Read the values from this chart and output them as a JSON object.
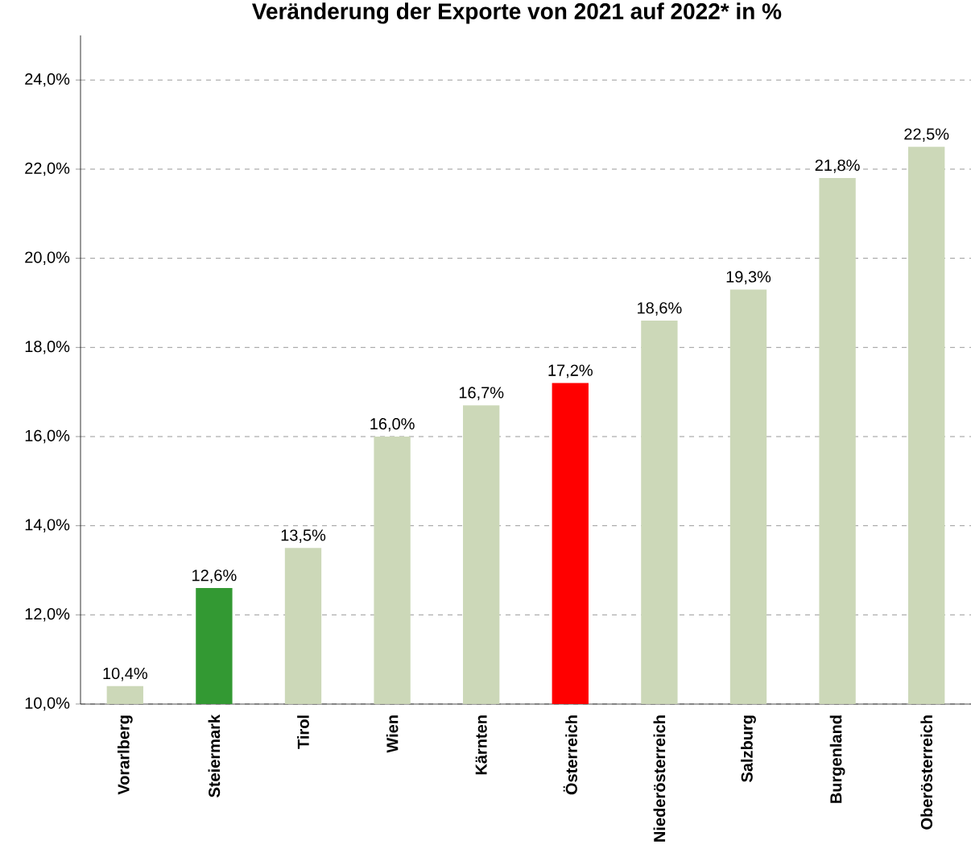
{
  "chart_data": {
    "type": "bar",
    "title": "Veränderung der Exporte von 2021 auf 2022* in %",
    "categories": [
      "Vorarlberg",
      "Steiermark",
      "Tirol",
      "Wien",
      "Kärnten",
      "Österreich",
      "Niederösterreich",
      "Salzburg",
      "Burgenland",
      "Oberösterreich"
    ],
    "values": [
      10.4,
      12.6,
      13.5,
      16.0,
      16.7,
      17.2,
      18.6,
      19.3,
      21.8,
      22.5
    ],
    "colors": [
      "#ccd8b8",
      "#339933",
      "#ccd8b8",
      "#ccd8b8",
      "#ccd8b8",
      "#ff0000",
      "#ccd8b8",
      "#ccd8b8",
      "#ccd8b8",
      "#ccd8b8"
    ],
    "value_labels": [
      "10,4%",
      "12,6%",
      "13,5%",
      "16,0%",
      "16,7%",
      "17,2%",
      "18,6%",
      "19,3%",
      "21,8%",
      "22,5%"
    ],
    "ylim": [
      10,
      25
    ],
    "yticks": [
      {
        "value": 10,
        "label": "10,0%"
      },
      {
        "value": 12,
        "label": "12,0%"
      },
      {
        "value": 14,
        "label": "14,0%"
      },
      {
        "value": 16,
        "label": "16,0%"
      },
      {
        "value": 18,
        "label": "18,0%"
      },
      {
        "value": 20,
        "label": "20,0%"
      },
      {
        "value": 22,
        "label": "22,0%"
      },
      {
        "value": 24,
        "label": "24,0%"
      }
    ],
    "grid": "y"
  }
}
